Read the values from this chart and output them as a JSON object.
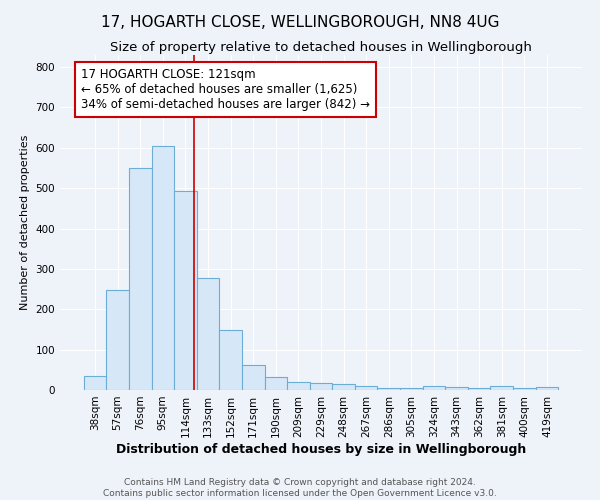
{
  "title": "17, HOGARTH CLOSE, WELLINGBOROUGH, NN8 4UG",
  "subtitle": "Size of property relative to detached houses in Wellingborough",
  "xlabel": "Distribution of detached houses by size in Wellingborough",
  "ylabel": "Number of detached properties",
  "bin_labels": [
    "38sqm",
    "57sqm",
    "76sqm",
    "95sqm",
    "114sqm",
    "133sqm",
    "152sqm",
    "171sqm",
    "190sqm",
    "209sqm",
    "229sqm",
    "248sqm",
    "267sqm",
    "286sqm",
    "305sqm",
    "324sqm",
    "343sqm",
    "362sqm",
    "381sqm",
    "400sqm",
    "419sqm"
  ],
  "bin_edges": [
    28.5,
    47.5,
    66.5,
    85.5,
    104.5,
    123.5,
    142.5,
    161.5,
    180.5,
    199.5,
    218.5,
    237.5,
    256.5,
    275.5,
    294.5,
    313.5,
    332.5,
    351.5,
    370.5,
    389.5,
    408.5,
    427.5
  ],
  "bar_values": [
    35,
    248,
    550,
    605,
    493,
    278,
    148,
    62,
    33,
    20,
    18,
    14,
    10,
    6,
    5,
    9,
    8,
    5,
    10,
    5,
    8
  ],
  "bar_color": "#d6e8f7",
  "bar_edge_color": "#6aaed6",
  "vline_x": 121,
  "vline_color": "#cc0000",
  "annotation_line1": "17 HOGARTH CLOSE: 121sqm",
  "annotation_line2": "← 65% of detached houses are smaller (1,625)",
  "annotation_line3": "34% of semi-detached houses are larger (842) →",
  "annotation_box_color": "white",
  "annotation_box_edge_color": "#cc0000",
  "ylim": [
    0,
    830
  ],
  "yticks": [
    0,
    100,
    200,
    300,
    400,
    500,
    600,
    700,
    800
  ],
  "footer_text": "Contains HM Land Registry data © Crown copyright and database right 2024.\nContains public sector information licensed under the Open Government Licence v3.0.",
  "bg_color": "#eef2f9",
  "plot_bg_color": "#eef2f9",
  "grid_color": "white",
  "title_fontsize": 11,
  "subtitle_fontsize": 9.5,
  "xlabel_fontsize": 9,
  "ylabel_fontsize": 8,
  "tick_fontsize": 7.5,
  "footer_fontsize": 6.5,
  "annotation_fontsize": 8.5
}
